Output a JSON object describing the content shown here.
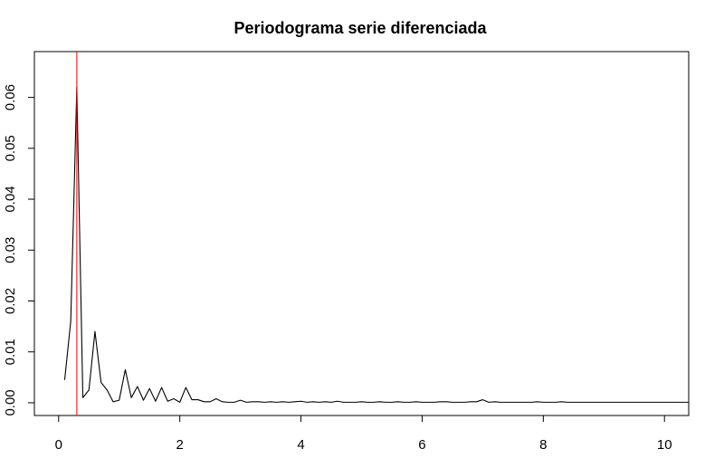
{
  "chart_data": {
    "type": "line",
    "title": "Periodograma serie diferenciada",
    "xlabel": "",
    "ylabel": "",
    "xlim": [
      -0.4,
      10.4
    ],
    "ylim": [
      -0.0025,
      0.069
    ],
    "x_ticks": [
      0,
      2,
      4,
      6,
      8,
      10
    ],
    "y_ticks": [
      0.0,
      0.01,
      0.02,
      0.03,
      0.04,
      0.05,
      0.06
    ],
    "y_tick_labels": [
      "0.00",
      "0.01",
      "0.02",
      "0.03",
      "0.04",
      "0.05",
      "0.06"
    ],
    "grid": false,
    "legend": "none",
    "colors": {
      "series": "#000000",
      "marker_line": "#ff0000",
      "axis": "#000000"
    },
    "vline": {
      "x": 0.3
    },
    "series": [
      {
        "x": [
          0.1,
          0.2,
          0.3,
          0.4,
          0.5,
          0.6,
          0.7,
          0.8,
          0.9,
          1.0,
          1.1,
          1.2,
          1.3,
          1.4,
          1.5,
          1.6,
          1.7,
          1.8,
          1.9,
          2.0,
          2.1,
          2.2,
          2.3,
          2.4,
          2.5,
          2.6,
          2.7,
          2.8,
          2.9,
          3.0,
          3.1,
          3.2,
          3.3,
          3.4,
          3.5,
          3.6,
          3.7,
          3.8,
          3.9,
          4.0,
          4.1,
          4.2,
          4.3,
          4.4,
          4.5,
          4.6,
          4.7,
          4.8,
          4.9,
          5.0,
          5.1,
          5.2,
          5.3,
          5.4,
          5.5,
          5.6,
          5.7,
          5.8,
          5.9,
          6.0,
          6.1,
          6.2,
          6.3,
          6.4,
          6.5,
          6.6,
          6.7,
          6.8,
          6.9,
          7.0,
          7.1,
          7.2,
          7.3,
          7.4,
          7.5,
          7.6,
          7.7,
          7.8,
          7.9,
          8.0,
          8.1,
          8.2,
          8.3,
          8.4,
          8.5,
          8.6,
          8.7,
          8.8,
          8.9,
          9.0,
          9.1,
          9.2,
          9.3,
          9.4,
          9.5,
          9.6,
          9.7,
          9.8,
          9.9,
          10.0,
          10.1,
          10.2,
          10.3,
          10.4
        ],
        "values": [
          0.0045,
          0.016,
          0.062,
          0.001,
          0.0025,
          0.014,
          0.004,
          0.0025,
          0.0002,
          0.0005,
          0.0065,
          0.001,
          0.0032,
          0.0005,
          0.0028,
          0.0003,
          0.003,
          0.0003,
          0.0008,
          0.0001,
          0.003,
          0.0006,
          0.0006,
          0.0002,
          0.0002,
          0.0008,
          0.0002,
          0.0001,
          0.0001,
          0.0005,
          0.0001,
          0.0002,
          0.0002,
          0.0001,
          0.0002,
          0.0001,
          0.0002,
          0.0001,
          0.0002,
          0.0003,
          0.0001,
          0.0002,
          0.0001,
          0.0002,
          0.0001,
          0.0003,
          0.0001,
          0.0001,
          0.0001,
          0.0002,
          0.0001,
          0.0001,
          0.0002,
          0.0001,
          0.0001,
          0.0002,
          0.0001,
          0.0001,
          0.0002,
          0.0001,
          0.0001,
          0.0001,
          0.0002,
          0.0002,
          0.0001,
          0.0001,
          0.0001,
          0.0002,
          0.0002,
          0.0006,
          0.0001,
          0.0002,
          0.0001,
          0.0001,
          0.0001,
          0.0001,
          0.0001,
          0.0001,
          0.0002,
          0.0001,
          0.0001,
          0.0001,
          0.0002,
          0.0001,
          0.0001,
          0.0001,
          0.0001,
          0.0001,
          0.0001,
          0.0001,
          0.0001,
          0.0001,
          0.0001,
          0.0001,
          0.0001,
          0.0001,
          0.0001,
          0.0001,
          0.0001,
          0.0001,
          0.0001,
          0.0001,
          0.0001,
          0.0001
        ]
      }
    ]
  }
}
